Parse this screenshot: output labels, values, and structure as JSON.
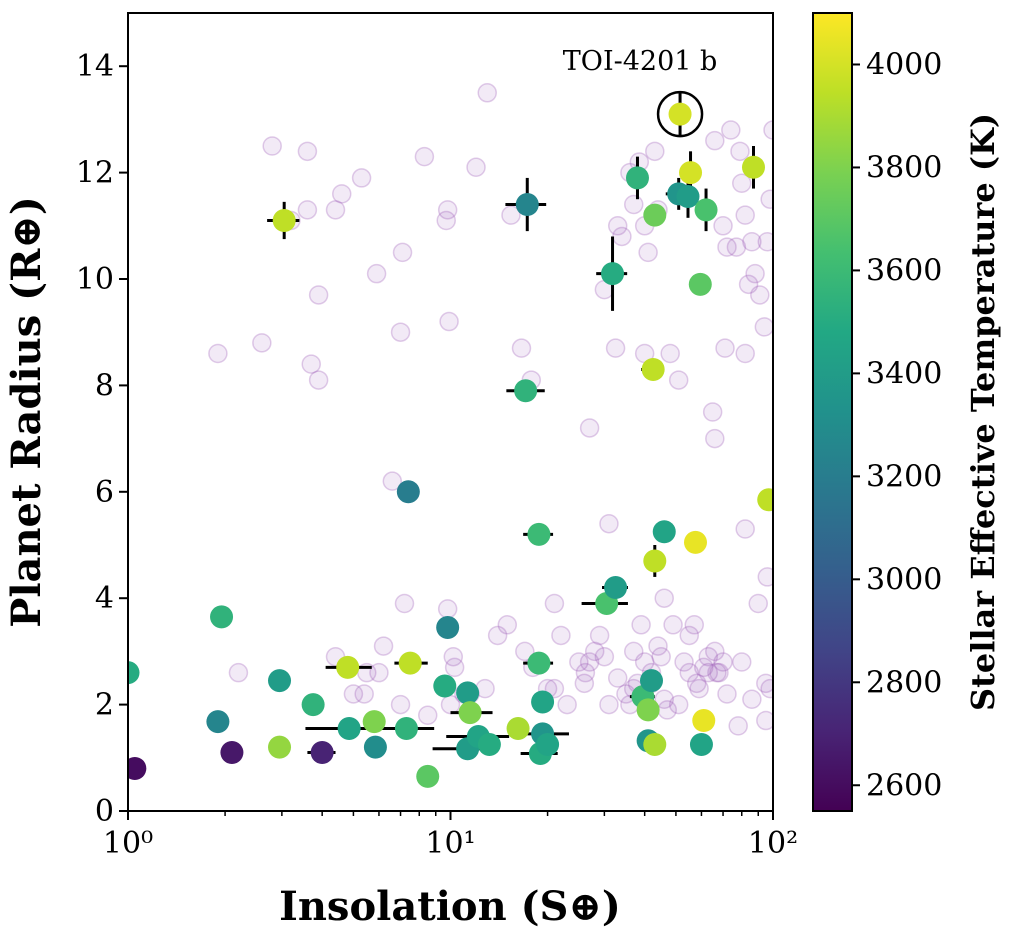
{
  "chart_data": {
    "type": "scatter",
    "title": "",
    "xlabel": "Insolation (S⊕)",
    "ylabel": "Planet Radius (R⊕)",
    "x_scale": "log",
    "xlim": [
      1,
      100
    ],
    "ylim": [
      0,
      15
    ],
    "x_ticks": [
      {
        "value": 1,
        "label": "10⁰"
      },
      {
        "value": 10,
        "label": "10¹"
      },
      {
        "value": 100,
        "label": "10²"
      }
    ],
    "y_ticks": [
      0,
      2,
      4,
      6,
      8,
      10,
      12,
      14
    ],
    "colorbar": {
      "label": "Stellar Effective Temperature (K)",
      "range": [
        2550,
        4100
      ],
      "ticks": [
        2600,
        2800,
        3000,
        3200,
        3400,
        3600,
        3800,
        4000
      ],
      "colormap": "viridis"
    },
    "background_color": "#9b59b6",
    "background_points": [
      [
        2.8,
        12.5
      ],
      [
        3.6,
        12.4
      ],
      [
        4.4,
        11.3
      ],
      [
        4.6,
        11.6
      ],
      [
        5.3,
        11.9
      ],
      [
        8.3,
        12.3
      ],
      [
        9.8,
        11.3
      ],
      [
        9.7,
        11.1
      ],
      [
        12.0,
        12.1
      ],
      [
        13.0,
        13.5
      ],
      [
        15.4,
        11.2
      ],
      [
        3.6,
        11.3
      ],
      [
        3.2,
        11.1
      ],
      [
        7.1,
        10.5
      ],
      [
        5.9,
        10.1
      ],
      [
        3.9,
        9.7
      ],
      [
        7.0,
        9.0
      ],
      [
        9.9,
        9.2
      ],
      [
        1.9,
        8.6
      ],
      [
        2.6,
        8.8
      ],
      [
        3.7,
        8.4
      ],
      [
        3.9,
        8.1
      ],
      [
        6.6,
        6.2
      ],
      [
        7.2,
        3.9
      ],
      [
        9.8,
        3.8
      ],
      [
        6.2,
        3.1
      ],
      [
        10.2,
        2.9
      ],
      [
        10.3,
        2.7
      ],
      [
        11.5,
        2.2
      ],
      [
        12.8,
        2.3
      ],
      [
        14.0,
        3.3
      ],
      [
        15.0,
        3.5
      ],
      [
        16.6,
        8.7
      ],
      [
        17.8,
        8.1
      ],
      [
        21.0,
        3.9
      ],
      [
        22.0,
        3.3
      ],
      [
        25.0,
        2.8
      ],
      [
        26.0,
        2.4
      ],
      [
        26.2,
        2.6
      ],
      [
        27.0,
        2.8
      ],
      [
        28.0,
        3.0
      ],
      [
        29.0,
        3.3
      ],
      [
        27.0,
        7.2
      ],
      [
        31.0,
        5.4
      ],
      [
        32.5,
        8.7
      ],
      [
        36.0,
        12.0
      ],
      [
        38.5,
        12.2
      ],
      [
        37.0,
        11.4
      ],
      [
        40.0,
        11.0
      ],
      [
        41.0,
        10.5
      ],
      [
        43.0,
        12.4
      ],
      [
        44.0,
        11.3
      ],
      [
        33.0,
        11.0
      ],
      [
        34.0,
        10.8
      ],
      [
        30.0,
        9.8
      ],
      [
        40.0,
        8.6
      ],
      [
        48.0,
        8.6
      ],
      [
        51.0,
        8.1
      ],
      [
        57.0,
        3.5
      ],
      [
        65.0,
        7.5
      ],
      [
        66.0,
        7.0
      ],
      [
        66.0,
        12.6
      ],
      [
        70.0,
        11.0
      ],
      [
        74.0,
        12.8
      ],
      [
        79.0,
        12.4
      ],
      [
        80.0,
        11.8
      ],
      [
        82.0,
        11.2
      ],
      [
        86.0,
        10.7
      ],
      [
        88.0,
        10.1
      ],
      [
        91.0,
        9.7
      ],
      [
        94.0,
        9.1
      ],
      [
        72.0,
        10.6
      ],
      [
        77.0,
        10.6
      ],
      [
        84.0,
        9.9
      ],
      [
        71.0,
        8.7
      ],
      [
        82.0,
        8.6
      ],
      [
        98.0,
        11.5
      ],
      [
        96.0,
        10.7
      ],
      [
        100.0,
        12.8
      ],
      [
        37.0,
        3.0
      ],
      [
        40.0,
        2.8
      ],
      [
        42.0,
        2.6
      ],
      [
        45.0,
        2.9
      ],
      [
        49.0,
        3.5
      ],
      [
        53.0,
        2.8
      ],
      [
        55.0,
        2.6
      ],
      [
        58.0,
        2.4
      ],
      [
        61.0,
        2.7
      ],
      [
        66.0,
        3.0
      ],
      [
        70.0,
        2.8
      ],
      [
        80.0,
        2.8
      ],
      [
        86.0,
        2.1
      ],
      [
        46.0,
        4.0
      ],
      [
        44.0,
        3.1
      ],
      [
        55.0,
        3.3
      ],
      [
        63.0,
        2.6
      ],
      [
        67.0,
        2.6
      ],
      [
        72.0,
        2.2
      ],
      [
        78.0,
        1.6
      ],
      [
        95.0,
        1.7
      ],
      [
        98.0,
        2.3
      ],
      [
        30.0,
        2.9
      ],
      [
        33.0,
        2.5
      ],
      [
        35.0,
        2.2
      ],
      [
        37.0,
        2.3
      ],
      [
        46.0,
        2.1
      ],
      [
        51.0,
        2.0
      ],
      [
        59.0,
        2.3
      ],
      [
        63.0,
        2.9
      ],
      [
        90.0,
        3.9
      ],
      [
        96.0,
        4.4
      ],
      [
        95.0,
        2.4
      ],
      [
        82.0,
        5.3
      ],
      [
        17.0,
        3.0
      ],
      [
        18.0,
        2.7
      ],
      [
        20.0,
        2.3
      ],
      [
        21.0,
        2.3
      ],
      [
        23.0,
        2.0
      ],
      [
        11.0,
        2.2
      ],
      [
        10.0,
        2.0
      ],
      [
        8.5,
        1.8
      ],
      [
        7.0,
        2.0
      ],
      [
        6.0,
        2.6
      ],
      [
        5.5,
        2.6
      ],
      [
        4.4,
        2.9
      ],
      [
        2.2,
        2.6
      ],
      [
        5.0,
        2.2
      ],
      [
        5.4,
        2.2
      ],
      [
        42.0,
        2.4
      ],
      [
        47.0,
        1.9
      ],
      [
        36.0,
        2.0
      ],
      [
        38.0,
        2.4
      ],
      [
        68.0,
        2.6
      ],
      [
        31.0,
        2.0
      ],
      [
        39.0,
        3.5
      ]
    ],
    "points": [
      {
        "x": 1.0,
        "y": 2.6,
        "teff": 3500
      },
      {
        "x": 1.05,
        "y": 0.8,
        "teff": 2600
      },
      {
        "x": 1.95,
        "y": 3.65,
        "teff": 3550,
        "xerr": [
          0.05,
          0.05
        ]
      },
      {
        "x": 1.9,
        "y": 1.68,
        "teff": 3250,
        "xerr": [
          0.12,
          0.12
        ]
      },
      {
        "x": 2.1,
        "y": 1.1,
        "teff": 2650
      },
      {
        "x": 2.95,
        "y": 1.2,
        "teff": 3850
      },
      {
        "x": 2.95,
        "y": 2.45,
        "teff": 3400
      },
      {
        "x": 3.05,
        "y": 11.1,
        "teff": 3950,
        "xerr": [
          0.35,
          0.35
        ],
        "yerr": [
          0.35,
          0.35
        ]
      },
      {
        "x": 3.75,
        "y": 2.0,
        "teff": 3550,
        "xerr": [
          0.2,
          0.2
        ]
      },
      {
        "x": 4.0,
        "y": 1.1,
        "teff": 2700,
        "xerr": [
          0.4,
          0.4
        ]
      },
      {
        "x": 4.8,
        "y": 2.7,
        "teff": 3950,
        "xerr": [
          0.7,
          0.9
        ]
      },
      {
        "x": 4.85,
        "y": 1.55,
        "teff": 3450,
        "xerr": [
          1.3,
          1.5
        ]
      },
      {
        "x": 5.85,
        "y": 1.2,
        "teff": 3300
      },
      {
        "x": 5.8,
        "y": 1.68,
        "teff": 3800
      },
      {
        "x": 7.3,
        "y": 1.55,
        "teff": 3550,
        "xerr": [
          1.5,
          1.6
        ]
      },
      {
        "x": 7.5,
        "y": 2.78,
        "teff": 3950,
        "xerr": [
          0.8,
          1.0
        ]
      },
      {
        "x": 7.4,
        "y": 6.0,
        "teff": 3200,
        "xerr": [
          0.5,
          0.5
        ]
      },
      {
        "x": 8.5,
        "y": 0.65,
        "teff": 3700
      },
      {
        "x": 9.8,
        "y": 3.45,
        "teff": 3250,
        "xerr": [
          0.3,
          0.3
        ]
      },
      {
        "x": 9.6,
        "y": 2.35,
        "teff": 3500
      },
      {
        "x": 11.3,
        "y": 2.22,
        "teff": 3400
      },
      {
        "x": 11.5,
        "y": 1.85,
        "teff": 3800,
        "xerr": [
          1.5,
          2.0
        ]
      },
      {
        "x": 11.3,
        "y": 1.17,
        "teff": 3400,
        "xerr": [
          2.5,
          2.5
        ]
      },
      {
        "x": 12.2,
        "y": 1.4,
        "teff": 3450,
        "xerr": [
          2.5,
          3.0
        ]
      },
      {
        "x": 13.2,
        "y": 1.25,
        "teff": 3500
      },
      {
        "x": 16.2,
        "y": 1.55,
        "teff": 3900
      },
      {
        "x": 17.1,
        "y": 7.9,
        "teff": 3550,
        "xerr": [
          2.2,
          2.5
        ]
      },
      {
        "x": 17.3,
        "y": 11.4,
        "teff": 3250,
        "xerr": [
          2.5,
          2.5
        ],
        "yerr": [
          0.5,
          0.5
        ]
      },
      {
        "x": 18.8,
        "y": 5.2,
        "teff": 3600,
        "xerr": [
          2.0,
          2.0
        ]
      },
      {
        "x": 18.8,
        "y": 2.78,
        "teff": 3600,
        "xerr": [
          2.0,
          2.0
        ]
      },
      {
        "x": 19.3,
        "y": 2.05,
        "teff": 3450
      },
      {
        "x": 19.3,
        "y": 1.45,
        "teff": 3350,
        "xerr": [
          2.0,
          4.0
        ]
      },
      {
        "x": 19.0,
        "y": 1.08,
        "teff": 3500,
        "xerr": [
          2.5,
          2.5
        ]
      },
      {
        "x": 20.0,
        "y": 1.25,
        "teff": 3450
      },
      {
        "x": 30.5,
        "y": 3.9,
        "teff": 3650,
        "xerr": [
          5.0,
          5.0
        ]
      },
      {
        "x": 32.5,
        "y": 4.2,
        "teff": 3400,
        "xerr": [
          3.0,
          3.0
        ]
      },
      {
        "x": 31.8,
        "y": 10.1,
        "teff": 3500,
        "xerr": [
          3.5,
          3.5
        ],
        "yerr": [
          0.7,
          0.7
        ]
      },
      {
        "x": 38.0,
        "y": 11.9,
        "teff": 3550,
        "xerr": [
          2.5,
          2.5
        ],
        "yerr": [
          0.4,
          0.4
        ]
      },
      {
        "x": 39.5,
        "y": 2.15,
        "teff": 3600,
        "xerr": [
          3.5,
          3.5
        ]
      },
      {
        "x": 41.0,
        "y": 1.9,
        "teff": 3800
      },
      {
        "x": 42.0,
        "y": 2.45,
        "teff": 3400
      },
      {
        "x": 41.0,
        "y": 1.32,
        "teff": 3350
      },
      {
        "x": 43.0,
        "y": 1.25,
        "teff": 3900
      },
      {
        "x": 42.5,
        "y": 8.3,
        "teff": 3950,
        "xerr": [
          3.5,
          3.5
        ]
      },
      {
        "x": 43.0,
        "y": 4.7,
        "teff": 3950,
        "yerr": [
          0.3,
          0.3
        ]
      },
      {
        "x": 43.0,
        "y": 11.2,
        "teff": 3750
      },
      {
        "x": 46.0,
        "y": 5.25,
        "teff": 3450
      },
      {
        "x": 51.0,
        "y": 11.6,
        "teff": 3350,
        "xerr": [
          4.5,
          4.5
        ],
        "yerr": [
          0.3,
          0.3
        ]
      },
      {
        "x": 51.5,
        "y": 13.1,
        "teff": 4000,
        "yerr": [
          0.4,
          0.4
        ],
        "highlight": true
      },
      {
        "x": 55.5,
        "y": 12.0,
        "teff": 4000,
        "yerr": [
          0.4,
          0.4
        ]
      },
      {
        "x": 54.5,
        "y": 11.55,
        "teff": 3400,
        "xerr": [
          4.0,
          4.0
        ],
        "yerr": [
          0.4,
          0.4
        ]
      },
      {
        "x": 57.5,
        "y": 5.05,
        "teff": 4050
      },
      {
        "x": 59.5,
        "y": 9.9,
        "teff": 3700
      },
      {
        "x": 62.0,
        "y": 11.3,
        "teff": 3650,
        "yerr": [
          0.4,
          0.4
        ]
      },
      {
        "x": 61.0,
        "y": 1.7,
        "teff": 4050
      },
      {
        "x": 60.0,
        "y": 1.25,
        "teff": 3450,
        "xerr": [
          4.0,
          4.0
        ]
      },
      {
        "x": 87.0,
        "y": 12.1,
        "teff": 3950,
        "yerr": [
          0.4,
          0.4
        ]
      },
      {
        "x": 97.0,
        "y": 5.85,
        "teff": 3950
      }
    ],
    "annotations": [
      {
        "text": "TOI-4201 b",
        "x": 51.5,
        "y": 13.1
      }
    ]
  }
}
